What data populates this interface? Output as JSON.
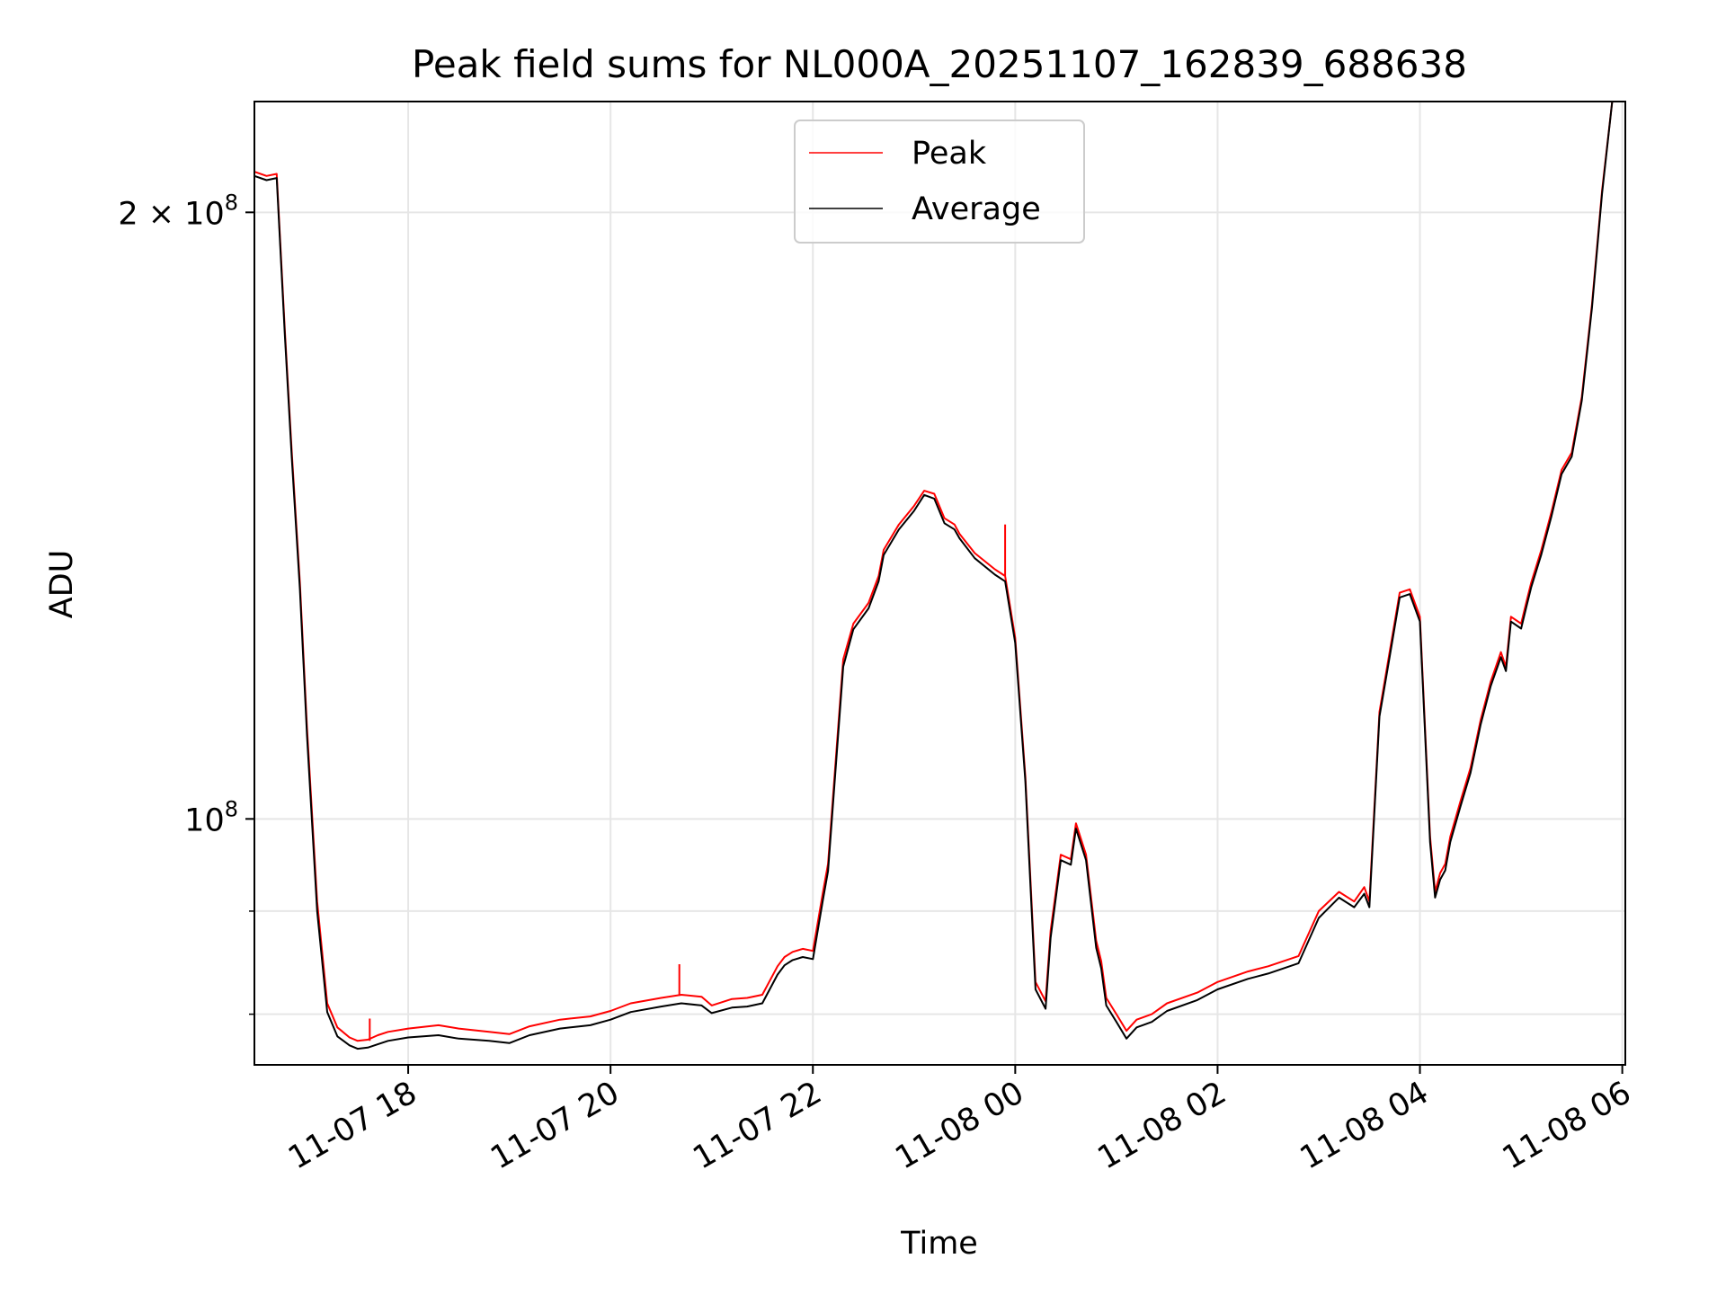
{
  "chart_data": {
    "type": "line",
    "title": "Peak field sums for NL000A_20251107_162839_688638",
    "xlabel": "Time",
    "ylabel": "ADU",
    "yscale": "log",
    "xlim_hours": [
      16.48,
      30.03
    ],
    "ylim": [
      75500000,
      227000000
    ],
    "grid": true,
    "legend_placement": "upper-center",
    "x_ticks": [
      {
        "hours": 18,
        "label": "11-07 18"
      },
      {
        "hours": 20,
        "label": "11-07 20"
      },
      {
        "hours": 22,
        "label": "11-07 22"
      },
      {
        "hours": 24,
        "label": "11-08 00"
      },
      {
        "hours": 26,
        "label": "11-08 02"
      },
      {
        "hours": 28,
        "label": "11-08 04"
      },
      {
        "hours": 30,
        "label": "11-08 06"
      }
    ],
    "y_ticks": [
      {
        "value": 100000000,
        "base": "10",
        "exp": "8",
        "prefix": ""
      },
      {
        "value": 200000000,
        "base": "10",
        "exp": "8",
        "prefix": "2 × "
      }
    ],
    "y_minor_ticks": [
      90000000,
      80000000
    ],
    "series": [
      {
        "name": "Peak",
        "color": "#ff0000"
      },
      {
        "name": "Average",
        "color": "#000000"
      }
    ],
    "x_hours": [
      16.48,
      16.6,
      16.7,
      16.78,
      16.85,
      16.93,
      17.0,
      17.1,
      17.2,
      17.3,
      17.42,
      17.5,
      17.6,
      17.7,
      17.8,
      18.0,
      18.3,
      18.5,
      18.8,
      19.0,
      19.2,
      19.5,
      19.8,
      20.0,
      20.2,
      20.5,
      20.7,
      20.9,
      21.0,
      21.2,
      21.35,
      21.5,
      21.65,
      21.72,
      21.8,
      21.9,
      22.0,
      22.1,
      22.15,
      22.3,
      22.4,
      22.55,
      22.65,
      22.7,
      22.85,
      23.0,
      23.1,
      23.2,
      23.3,
      23.4,
      23.45,
      23.6,
      23.8,
      23.9,
      24.0,
      24.1,
      24.2,
      24.3,
      24.35,
      24.45,
      24.55,
      24.6,
      24.7,
      24.8,
      24.85,
      24.9,
      25.0,
      25.1,
      25.2,
      25.35,
      25.5,
      25.8,
      26.0,
      26.3,
      26.5,
      26.8,
      27.0,
      27.2,
      27.35,
      27.45,
      27.5,
      27.6,
      27.7,
      27.8,
      27.9,
      28.0,
      28.1,
      28.15,
      28.2,
      28.25,
      28.3,
      28.4,
      28.5,
      28.6,
      28.7,
      28.8,
      28.85,
      28.9,
      29.0,
      29.05,
      29.1,
      29.2,
      29.3,
      29.4,
      29.5,
      29.6,
      29.7,
      29.8,
      29.9,
      29.95,
      30.0
    ],
    "peak": [
      209500000,
      208500000,
      209000000,
      175000000,
      152000000,
      131000000,
      111000000,
      91000000,
      81000000,
      78800000,
      77900000,
      77600000,
      77700000,
      78100000,
      78400000,
      78700000,
      79000000,
      78700000,
      78400000,
      78200000,
      78900000,
      79500000,
      79800000,
      80300000,
      81000000,
      81500000,
      81800000,
      81600000,
      80800000,
      81400000,
      81500000,
      81800000,
      84500000,
      85400000,
      85900000,
      86200000,
      86000000,
      92000000,
      95000000,
      120000000,
      125000000,
      128000000,
      132000000,
      136000000,
      140000000,
      143000000,
      145500000,
      145000000,
      141000000,
      140000000,
      138500000,
      135500000,
      133000000,
      132000000,
      123000000,
      105000000,
      83000000,
      81200000,
      88000000,
      96000000,
      95500000,
      99500000,
      96000000,
      87000000,
      85000000,
      81500000,
      80000000,
      78500000,
      79500000,
      80000000,
      81000000,
      82000000,
      83000000,
      84000000,
      84500000,
      85500000,
      90000000,
      92000000,
      91000000,
      92500000,
      91000000,
      113000000,
      121000000,
      129500000,
      130000000,
      126000000,
      98000000,
      92000000,
      94000000,
      95000000,
      98000000,
      102000000,
      106000000,
      112000000,
      117000000,
      121000000,
      119000000,
      126000000,
      125000000,
      128000000,
      131000000,
      136000000,
      142000000,
      149000000,
      152000000,
      162000000,
      180000000,
      205000000,
      228000000,
      230000000,
      232000000
    ],
    "average": [
      208500000,
      207500000,
      208000000,
      174000000,
      151000000,
      130000000,
      110000000,
      90000000,
      80200000,
      78000000,
      77200000,
      76900000,
      77000000,
      77300000,
      77600000,
      77900000,
      78100000,
      77800000,
      77600000,
      77400000,
      78100000,
      78700000,
      79000000,
      79500000,
      80200000,
      80700000,
      81000000,
      80800000,
      80100000,
      80600000,
      80700000,
      81000000,
      83700000,
      84600000,
      85100000,
      85400000,
      85200000,
      91200000,
      94200000,
      119000000,
      124200000,
      127200000,
      131200000,
      135200000,
      139200000,
      142200000,
      144800000,
      144200000,
      140200000,
      139200000,
      137800000,
      134700000,
      132200000,
      131200000,
      122300000,
      104400000,
      82300000,
      80500000,
      87300000,
      95400000,
      94900000,
      98900000,
      95400000,
      86300000,
      84300000,
      80800000,
      79300000,
      77800000,
      78800000,
      79300000,
      80300000,
      81300000,
      82300000,
      83300000,
      83800000,
      84800000,
      89300000,
      91400000,
      90400000,
      91800000,
      90400000,
      112400000,
      120300000,
      128800000,
      129300000,
      125300000,
      97400000,
      91400000,
      93300000,
      94300000,
      97400000,
      101400000,
      105400000,
      111400000,
      116400000,
      120300000,
      118400000,
      125300000,
      124300000,
      127300000,
      130300000,
      135300000,
      141300000,
      148300000,
      151300000,
      161300000,
      179300000,
      204300000,
      227300000,
      229300000,
      231300000
    ],
    "spikes": [
      {
        "hours": 17.62,
        "peak": 77600000,
        "top": 79600000
      },
      {
        "hours": 20.68,
        "peak": 81700000,
        "top": 84700000
      },
      {
        "hours": 23.9,
        "peak": 132000000,
        "top": 140000000
      },
      {
        "hours": 29.98,
        "peak": 231000000,
        "top": 231000000
      }
    ]
  }
}
